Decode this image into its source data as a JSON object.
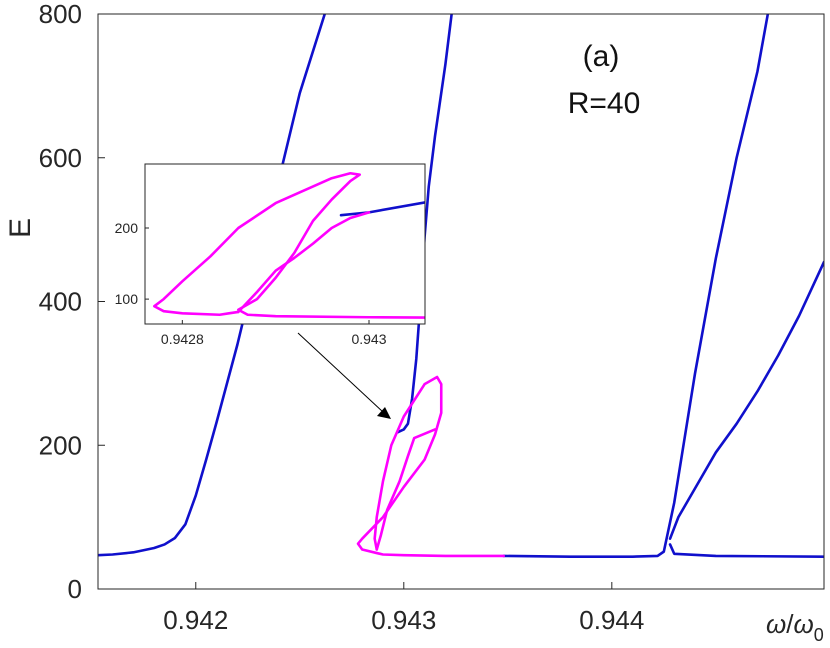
{
  "chart_data": {
    "type": "line",
    "panel_label": "(a)",
    "annotation": "R=40",
    "xlabel_symbol": "ω",
    "xlabel_sub": "0",
    "ylabel": "E",
    "xlim": [
      0.94153,
      0.94502
    ],
    "ylim": [
      0,
      800
    ],
    "x_ticks": [
      0.942,
      0.943,
      0.944
    ],
    "x_tick_labels": [
      "0.942",
      "0.943",
      "0.944"
    ],
    "y_ticks": [
      0,
      200,
      400,
      600,
      800
    ],
    "y_tick_labels": [
      "0",
      "200",
      "400",
      "600",
      "800"
    ],
    "colors": {
      "stable": "#1010cc",
      "unstable": "#ff00ff",
      "axis": "#262626"
    },
    "series": [
      {
        "color": "stable",
        "points": [
          [
            0.94153,
            47
          ],
          [
            0.9416,
            48
          ],
          [
            0.9417,
            51
          ],
          [
            0.9418,
            57
          ],
          [
            0.94185,
            62
          ],
          [
            0.9419,
            71
          ],
          [
            0.94195,
            90
          ],
          [
            0.942,
            130
          ],
          [
            0.94205,
            180
          ],
          [
            0.9421,
            232
          ],
          [
            0.9422,
            340
          ],
          [
            0.9423,
            460
          ],
          [
            0.9424,
            570
          ],
          [
            0.9425,
            690
          ],
          [
            0.94262,
            800
          ]
        ]
      },
      {
        "color": "stable",
        "points": [
          [
            0.94297,
            218
          ],
          [
            0.943,
            222
          ],
          [
            0.94302,
            230
          ],
          [
            0.94304,
            265
          ],
          [
            0.94306,
            320
          ],
          [
            0.94308,
            400
          ],
          [
            0.9431,
            490
          ],
          [
            0.94312,
            560
          ],
          [
            0.94315,
            630
          ],
          [
            0.9432,
            730
          ],
          [
            0.94323,
            800
          ]
        ]
      },
      {
        "color": "stable",
        "points": [
          [
            0.94348,
            46
          ],
          [
            0.9438,
            45
          ],
          [
            0.9441,
            45
          ],
          [
            0.94422,
            46
          ],
          [
            0.94425,
            52
          ],
          [
            0.9443,
            120
          ],
          [
            0.94435,
            210
          ],
          [
            0.9444,
            300
          ],
          [
            0.9445,
            460
          ],
          [
            0.9446,
            600
          ],
          [
            0.9447,
            720
          ],
          [
            0.94475,
            800
          ]
        ]
      },
      {
        "color": "stable",
        "points": [
          [
            0.94428,
            70
          ],
          [
            0.94432,
            100
          ],
          [
            0.9444,
            140
          ],
          [
            0.9445,
            190
          ],
          [
            0.9446,
            230
          ],
          [
            0.9447,
            275
          ],
          [
            0.9448,
            325
          ],
          [
            0.9449,
            380
          ],
          [
            0.94502,
            455
          ]
        ]
      },
      {
        "color": "stable",
        "points": [
          [
            0.94428,
            62
          ],
          [
            0.9443,
            49
          ],
          [
            0.9445,
            46
          ],
          [
            0.94502,
            45
          ]
        ]
      },
      {
        "color": "unstable",
        "points": [
          [
            0.94348,
            46
          ],
          [
            0.9432,
            46
          ],
          [
            0.943,
            47
          ],
          [
            0.9429,
            48
          ],
          [
            0.94287,
            50
          ],
          [
            0.9428,
            55
          ],
          [
            0.94278,
            63
          ],
          [
            0.9428,
            70
          ],
          [
            0.9429,
            100
          ],
          [
            0.943,
            142
          ],
          [
            0.9431,
            180
          ],
          [
            0.94315,
            215
          ],
          [
            0.94318,
            245
          ],
          [
            0.94318,
            285
          ],
          [
            0.94316,
            295
          ],
          [
            0.9431,
            285
          ],
          [
            0.943,
            240
          ],
          [
            0.94294,
            200
          ],
          [
            0.9429,
            150
          ],
          [
            0.94287,
            100
          ],
          [
            0.94286,
            70
          ],
          [
            0.94287,
            55
          ]
        ]
      },
      {
        "color": "unstable",
        "points": [
          [
            0.94287,
            55
          ],
          [
            0.94289,
            75
          ],
          [
            0.94292,
            110
          ],
          [
            0.94298,
            150
          ],
          [
            0.94302,
            185
          ],
          [
            0.94305,
            210
          ],
          [
            0.94315,
            222
          ]
        ]
      }
    ],
    "inset": {
      "xlim": [
        0.94276,
        0.94306
      ],
      "ylim": [
        65,
        290
      ],
      "x_ticks": [
        0.9428,
        0.943
      ],
      "x_tick_labels": [
        "0.9428",
        "0.943"
      ],
      "y_ticks": [
        100,
        200
      ],
      "y_tick_labels": [
        "100",
        "200"
      ],
      "series": [
        {
          "color": "stable",
          "points": [
            [
              0.94297,
              218
            ],
            [
              0.943,
              222
            ],
            [
              0.94306,
              236
            ]
          ]
        },
        {
          "color": "unstable",
          "points": [
            [
              0.94306,
              74
            ],
            [
              0.943,
              74.5
            ],
            [
              0.9429,
              76
            ],
            [
              0.94287,
              78
            ],
            [
              0.94286,
              85
            ],
            [
              0.94288,
              100
            ],
            [
              0.9429,
              130
            ],
            [
              0.94292,
              165
            ],
            [
              0.94294,
              210
            ],
            [
              0.94296,
              240
            ],
            [
              0.94298,
              266
            ],
            [
              0.94299,
              275
            ],
            [
              0.94298,
              277
            ],
            [
              0.94296,
              270
            ],
            [
              0.9429,
              235
            ],
            [
              0.94286,
              200
            ],
            [
              0.94283,
              160
            ],
            [
              0.9428,
              125
            ],
            [
              0.94278,
              100
            ],
            [
              0.94277,
              90
            ],
            [
              0.94278,
              83
            ],
            [
              0.9428,
              80
            ],
            [
              0.94284,
              78
            ],
            [
              0.94285,
              80
            ],
            [
              0.94286,
              82
            ]
          ]
        },
        {
          "color": "unstable",
          "points": [
            [
              0.94286,
              82
            ],
            [
              0.94288,
              110
            ],
            [
              0.9429,
              140
            ],
            [
              0.94292,
              158
            ],
            [
              0.94294,
              178
            ],
            [
              0.94296,
              200
            ],
            [
              0.94298,
              214
            ],
            [
              0.943,
              222
            ]
          ]
        }
      ]
    }
  }
}
